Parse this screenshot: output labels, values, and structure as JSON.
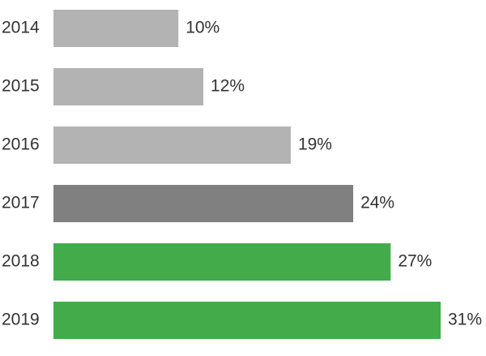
{
  "chart_data": {
    "type": "bar",
    "orientation": "horizontal",
    "categories": [
      "2014",
      "2015",
      "2016",
      "2017",
      "2018",
      "2019"
    ],
    "values": [
      10,
      12,
      19,
      24,
      27,
      31
    ],
    "value_labels": [
      "10%",
      "12%",
      "19%",
      "24%",
      "27%",
      "31%"
    ],
    "colors": [
      "#b3b3b3",
      "#b3b3b3",
      "#b3b3b3",
      "#808080",
      "#43ab4a",
      "#43ab4a"
    ]
  }
}
